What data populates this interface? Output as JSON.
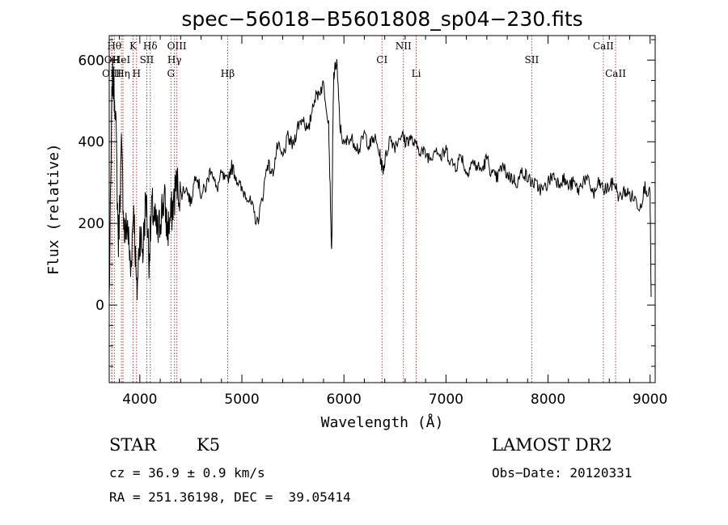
{
  "chart_data": {
    "type": "line",
    "title": "spec−56018−B5601808_sp04−230.fits",
    "xlabel": "Wavelength (Å)",
    "ylabel": "Flux (relative)",
    "xlim": [
      3700,
      9050
    ],
    "ylim": [
      -190,
      660
    ],
    "xticks": [
      4000,
      5000,
      6000,
      7000,
      8000,
      9000
    ],
    "yticks": [
      0,
      200,
      400,
      600
    ],
    "grid": false,
    "series": [
      {
        "x": [
          3700,
          3730,
          3760,
          3790,
          3820,
          3850,
          3880,
          3910,
          3940,
          3970,
          4000,
          4030,
          4060,
          4090,
          4120,
          4150,
          4180,
          4210,
          4240,
          4270,
          4300,
          4330,
          4360,
          4400,
          4450,
          4500,
          4550,
          4600,
          4650,
          4700,
          4750,
          4800,
          4850,
          4900,
          4950,
          5000,
          5050,
          5100,
          5150,
          5200,
          5250,
          5300,
          5350,
          5400,
          5450,
          5500,
          5550,
          5600,
          5650,
          5700,
          5750,
          5800,
          5850,
          5880,
          5890,
          5900,
          5930,
          5960,
          6000,
          6050,
          6100,
          6150,
          6200,
          6250,
          6300,
          6350,
          6380,
          6400,
          6450,
          6500,
          6563,
          6600,
          6650,
          6700,
          6750,
          6800,
          6850,
          6900,
          6950,
          7000,
          7050,
          7100,
          7150,
          7200,
          7250,
          7300,
          7350,
          7400,
          7450,
          7500,
          7550,
          7600,
          7650,
          7700,
          7750,
          7800,
          7850,
          7900,
          7950,
          8000,
          8050,
          8100,
          8150,
          8200,
          8250,
          8300,
          8350,
          8400,
          8450,
          8500,
          8550,
          8600,
          8650,
          8700,
          8750,
          8800,
          8850,
          8900,
          8950,
          9000,
          9010
        ],
        "y": [
          10,
          560,
          500,
          150,
          380,
          170,
          200,
          80,
          250,
          20,
          180,
          130,
          270,
          120,
          240,
          200,
          170,
          230,
          260,
          180,
          210,
          250,
          300,
          270,
          290,
          250,
          330,
          270,
          290,
          340,
          280,
          320,
          300,
          340,
          310,
          280,
          270,
          240,
          200,
          260,
          350,
          320,
          390,
          360,
          410,
          390,
          440,
          460,
          420,
          500,
          520,
          540,
          450,
          120,
          400,
          560,
          600,
          440,
          390,
          410,
          400,
          380,
          420,
          390,
          410,
          370,
          330,
          350,
          410,
          390,
          420,
          400,
          410,
          390,
          380,
          370,
          360,
          390,
          360,
          380,
          350,
          340,
          370,
          320,
          350,
          340,
          330,
          360,
          320,
          310,
          340,
          320,
          310,
          300,
          330,
          310,
          300,
          290,
          280,
          300,
          320,
          300,
          310,
          290,
          300,
          280,
          310,
          300,
          270,
          300,
          280,
          290,
          300,
          260,
          280,
          270,
          260,
          240,
          290,
          270,
          20
        ]
      }
    ],
    "line_markers": [
      {
        "label": "Hθ",
        "x": 3750,
        "row": 1
      },
      {
        "label": "K",
        "x": 3934,
        "row": 1
      },
      {
        "label": "Hδ",
        "x": 4102,
        "row": 1
      },
      {
        "label": "OIII",
        "x": 4363,
        "row": 1
      },
      {
        "label": "NII",
        "x": 6583,
        "row": 1
      },
      {
        "label": "CaII",
        "x": 8542,
        "row": 1
      },
      {
        "label": "OII",
        "x": 3727,
        "row": 2
      },
      {
        "label": "HeI",
        "x": 3820,
        "row": 2
      },
      {
        "label": "SII",
        "x": 4068,
        "row": 2
      },
      {
        "label": "Hγ",
        "x": 4340,
        "row": 2
      },
      {
        "label": "CI",
        "x": 6373,
        "row": 2
      },
      {
        "label": "SII",
        "x": 7840,
        "row": 2
      },
      {
        "label": "OIII",
        "x": 3725,
        "row": 3
      },
      {
        "label": "Hη",
        "x": 3835,
        "row": 3
      },
      {
        "label": "H",
        "x": 3968,
        "row": 3
      },
      {
        "label": "G",
        "x": 4305,
        "row": 3
      },
      {
        "label": "Hβ",
        "x": 4861,
        "row": 3
      },
      {
        "label": "Li",
        "x": 6708,
        "row": 3
      },
      {
        "label": "CaII",
        "x": 8662,
        "row": 3
      }
    ]
  },
  "info": {
    "object_class": "STAR",
    "subclass": "K5",
    "survey": "LAMOST DR2",
    "cz": "cz = 36.9 ± 0.9 km/s",
    "obs_date": "Obs−Date: 20120331",
    "coords": "RA = 251.36198, DEC =  39.05414"
  }
}
